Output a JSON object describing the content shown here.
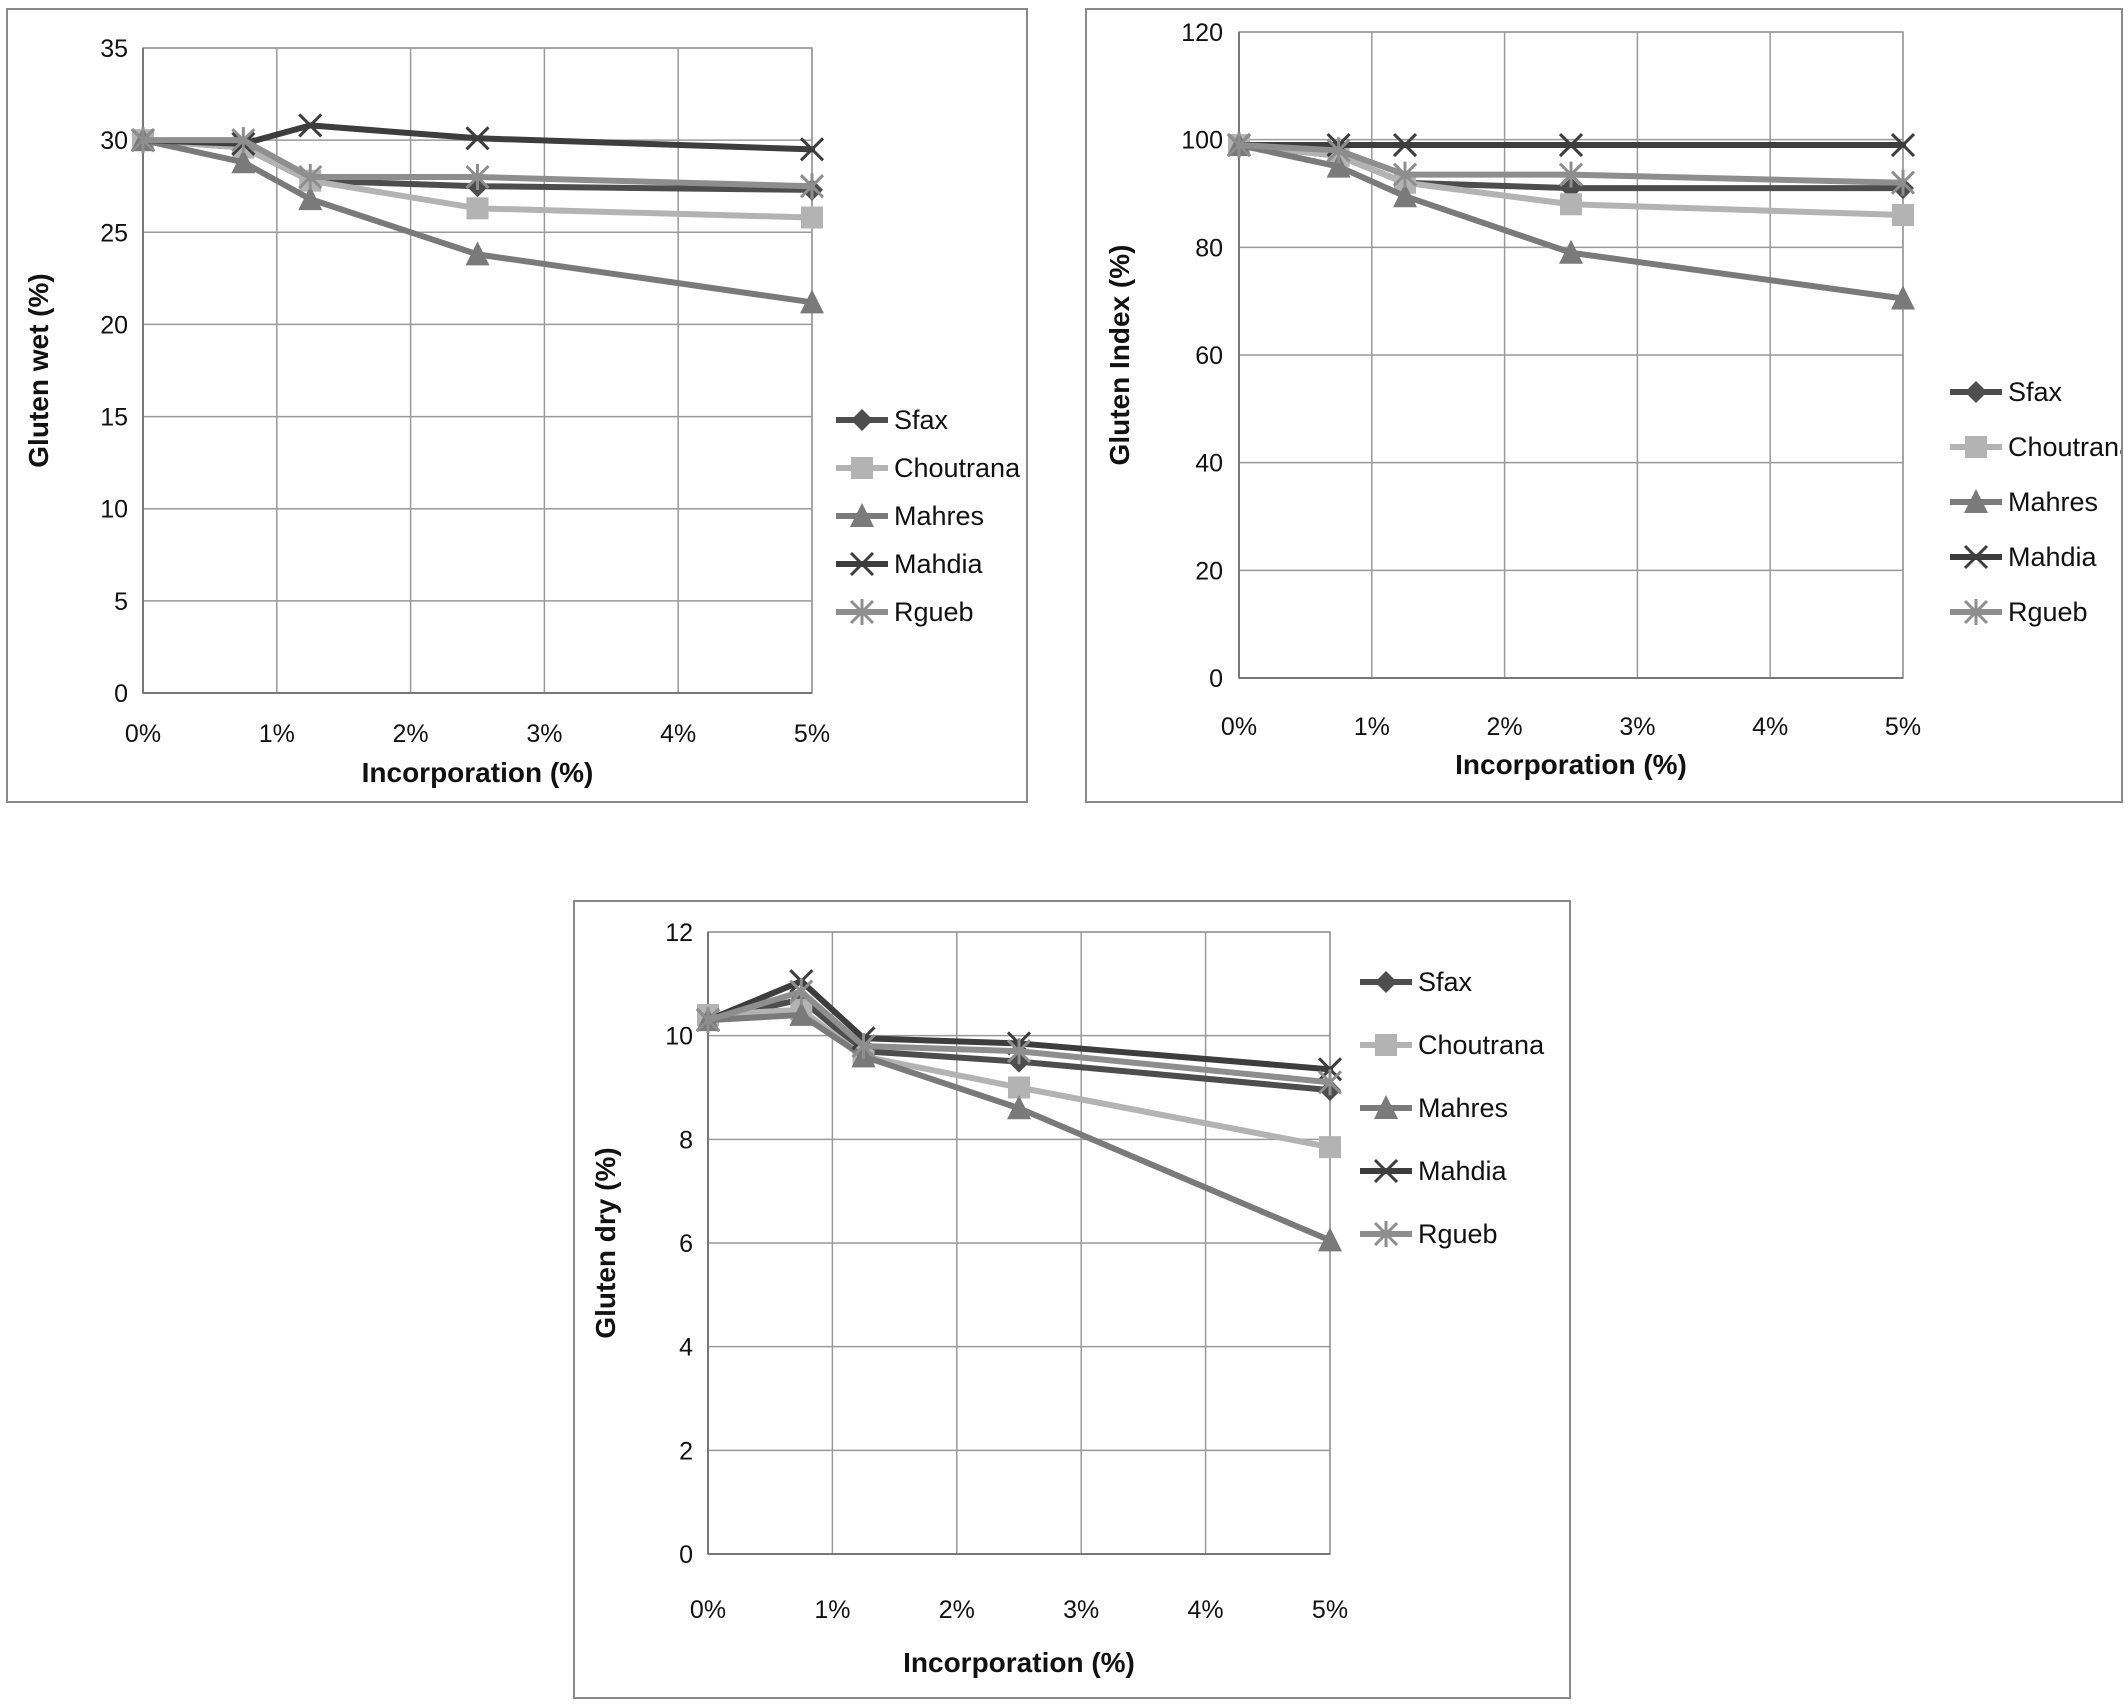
{
  "chart_data": [
    {
      "type": "line",
      "x": [
        "0%",
        "1%",
        "2%",
        "3%",
        "4%",
        "5%"
      ],
      "xlabel": "Incorporation (%)",
      "ylabel": "Gluten wet (%)",
      "xlim": [
        0,
        5
      ],
      "ylim": [
        0,
        35
      ],
      "yticks": [
        0,
        5,
        10,
        15,
        20,
        25,
        30,
        35
      ],
      "grid": true,
      "legend": "right",
      "series": [
        {
          "name": "Sfax",
          "color": "#4d4d4d",
          "marker": "diamond",
          "points": [
            [
              0,
              30
            ],
            [
              0.75,
              29.6
            ],
            [
              1.25,
              27.8
            ],
            [
              2.5,
              27.5
            ],
            [
              5,
              27.3
            ]
          ]
        },
        {
          "name": "Choutrana",
          "color": "#b3b3b3",
          "marker": "square",
          "points": [
            [
              0,
              30
            ],
            [
              0.75,
              29.6
            ],
            [
              1.25,
              27.8
            ],
            [
              2.5,
              26.3
            ],
            [
              5,
              25.8
            ]
          ]
        },
        {
          "name": "Mahres",
          "color": "#7a7a7a",
          "marker": "triangle",
          "points": [
            [
              0,
              30
            ],
            [
              0.75,
              28.8
            ],
            [
              1.25,
              26.8
            ],
            [
              2.5,
              23.8
            ],
            [
              5,
              21.2
            ]
          ]
        },
        {
          "name": "Mahdia",
          "color": "#3d3d3d",
          "marker": "x",
          "points": [
            [
              0,
              30
            ],
            [
              0.75,
              29.8
            ],
            [
              1.25,
              30.8
            ],
            [
              2.5,
              30.1
            ],
            [
              5,
              29.5
            ]
          ]
        },
        {
          "name": "Rgueb",
          "color": "#8e8e8e",
          "marker": "asterisk",
          "points": [
            [
              0,
              30
            ],
            [
              0.75,
              30.0
            ],
            [
              1.25,
              28.0
            ],
            [
              2.5,
              28.0
            ],
            [
              5,
              27.5
            ]
          ]
        }
      ]
    },
    {
      "type": "line",
      "x": [
        "0%",
        "1%",
        "2%",
        "3%",
        "4%",
        "5%"
      ],
      "xlabel": "Incorporation (%)",
      "ylabel": "Gluten Index (%)",
      "xlim": [
        0,
        5
      ],
      "ylim": [
        0,
        120
      ],
      "yticks": [
        0,
        20,
        40,
        60,
        80,
        100,
        120
      ],
      "grid": true,
      "legend": "right",
      "series": [
        {
          "name": "Sfax",
          "color": "#4d4d4d",
          "marker": "diamond",
          "points": [
            [
              0,
              99
            ],
            [
              0.75,
              97
            ],
            [
              1.25,
              92
            ],
            [
              2.5,
              91
            ],
            [
              5,
              91
            ]
          ]
        },
        {
          "name": "Choutrana",
          "color": "#b3b3b3",
          "marker": "square",
          "points": [
            [
              0,
              99
            ],
            [
              0.75,
              97
            ],
            [
              1.25,
              92
            ],
            [
              2.5,
              88
            ],
            [
              5,
              86
            ]
          ]
        },
        {
          "name": "Mahres",
          "color": "#7a7a7a",
          "marker": "triangle",
          "points": [
            [
              0,
              99
            ],
            [
              0.75,
              95
            ],
            [
              1.25,
              89.5
            ],
            [
              2.5,
              79
            ],
            [
              5,
              70.5
            ]
          ]
        },
        {
          "name": "Mahdia",
          "color": "#3d3d3d",
          "marker": "x",
          "points": [
            [
              0,
              99
            ],
            [
              0.75,
              99
            ],
            [
              1.25,
              99
            ],
            [
              2.5,
              99
            ],
            [
              5,
              99
            ]
          ]
        },
        {
          "name": "Rgueb",
          "color": "#8e8e8e",
          "marker": "asterisk",
          "points": [
            [
              0,
              99
            ],
            [
              0.75,
              98
            ],
            [
              1.25,
              93.5
            ],
            [
              2.5,
              93.5
            ],
            [
              5,
              92
            ]
          ]
        }
      ]
    },
    {
      "type": "line",
      "x": [
        "0%",
        "1%",
        "2%",
        "3%",
        "4%",
        "5%"
      ],
      "xlabel": "Incorporation (%)",
      "ylabel": "Gluten dry (%)",
      "xlim": [
        0,
        5
      ],
      "ylim": [
        0,
        12
      ],
      "yticks": [
        0,
        2,
        4,
        6,
        8,
        10,
        12
      ],
      "grid": true,
      "legend": "right",
      "series": [
        {
          "name": "Sfax",
          "color": "#4d4d4d",
          "marker": "diamond",
          "points": [
            [
              0,
              10.3
            ],
            [
              0.75,
              10.7
            ],
            [
              1.25,
              9.7
            ],
            [
              2.5,
              9.5
            ],
            [
              5,
              8.95
            ]
          ]
        },
        {
          "name": "Choutrana",
          "color": "#b3b3b3",
          "marker": "square",
          "points": [
            [
              0,
              10.4
            ],
            [
              0.75,
              10.5
            ],
            [
              1.25,
              9.6
            ],
            [
              2.5,
              9.0
            ],
            [
              5,
              7.85
            ]
          ]
        },
        {
          "name": "Mahres",
          "color": "#7a7a7a",
          "marker": "triangle",
          "points": [
            [
              0,
              10.3
            ],
            [
              0.75,
              10.4
            ],
            [
              1.25,
              9.6
            ],
            [
              2.5,
              8.6
            ],
            [
              5,
              6.05
            ]
          ]
        },
        {
          "name": "Mahdia",
          "color": "#3d3d3d",
          "marker": "x",
          "points": [
            [
              0,
              10.3
            ],
            [
              0.75,
              11.05
            ],
            [
              1.25,
              9.95
            ],
            [
              2.5,
              9.85
            ],
            [
              5,
              9.35
            ]
          ]
        },
        {
          "name": "Rgueb",
          "color": "#8e8e8e",
          "marker": "asterisk",
          "points": [
            [
              0,
              10.3
            ],
            [
              0.75,
              10.85
            ],
            [
              1.25,
              9.8
            ],
            [
              2.5,
              9.7
            ],
            [
              5,
              9.1
            ]
          ]
        }
      ]
    }
  ]
}
